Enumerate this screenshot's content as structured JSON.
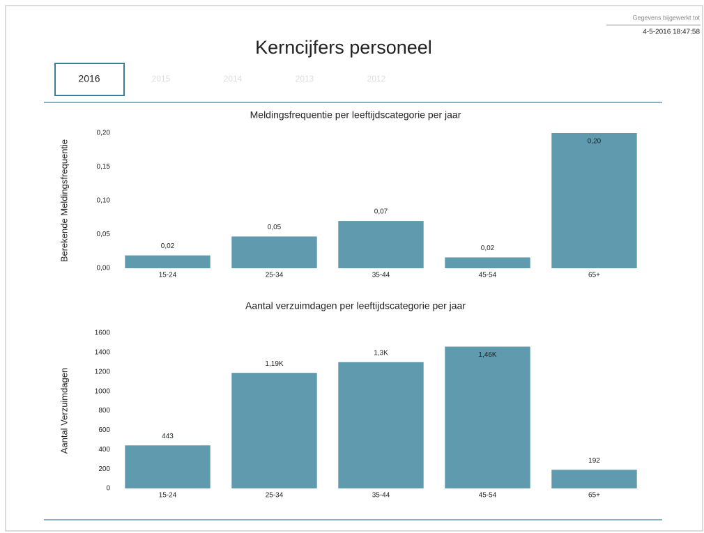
{
  "header": {
    "title": "Kerncijfers personeel",
    "updated_label": "Gegevens bijgewerkt tot",
    "updated_at": "4-5-2016 18:47:58"
  },
  "tabs": [
    "2016",
    "2015",
    "2014",
    "2013",
    "2012"
  ],
  "chart_data": [
    {
      "type": "bar",
      "title": "Meldingsfrequentie per leeftijdscategorie per jaar",
      "y_label": "Berekende Meldingsfrequentie",
      "categories": [
        "15-24",
        "25-34",
        "35-44",
        "45-54",
        "65+"
      ],
      "values": [
        0.019,
        0.047,
        0.07,
        0.016,
        0.2
      ],
      "value_labels": [
        "0,02",
        "0,05",
        "0,07",
        "0,02",
        "0,20"
      ],
      "color": "#5f9aae",
      "ylim": [
        0,
        0.2
      ],
      "yticks": [
        {
          "value": 0,
          "label": "0,00"
        },
        {
          "value": 0.05,
          "label": "0,05"
        },
        {
          "value": 0.1,
          "label": "0,10"
        },
        {
          "value": 0.15,
          "label": "0,15"
        },
        {
          "value": 0.2,
          "label": "0,20"
        }
      ]
    },
    {
      "type": "bar",
      "title": "Aantal verzuimdagen per leeftijdscategorie per jaar",
      "y_label": "Aantal Verzuimdagen",
      "categories": [
        "15-24",
        "25-34",
        "35-44",
        "45-54",
        "65+"
      ],
      "values": [
        443,
        1190,
        1300,
        1460,
        192
      ],
      "value_labels": [
        "443",
        "1,19K",
        "1,3K",
        "1,46K",
        "192"
      ],
      "color": "#5f9aae",
      "ylim": [
        0,
        1600
      ],
      "yticks": [
        0,
        200,
        400,
        600,
        800,
        1000,
        1200,
        1400,
        1600
      ]
    }
  ]
}
